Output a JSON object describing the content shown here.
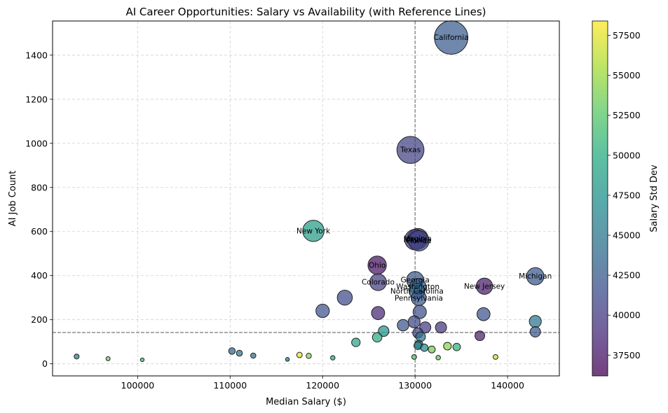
{
  "chart_data": {
    "type": "scatter",
    "title": "AI Career Opportunities: Salary vs Availability (with Reference Lines)",
    "xlabel": "Median Salary ($)",
    "ylabel": "AI Job Count",
    "xlim": [
      90800,
      145600
    ],
    "ylim": [
      -55,
      1555
    ],
    "xticks": [
      100000,
      110000,
      120000,
      130000,
      140000
    ],
    "xtick_labels": [
      "100000",
      "110000",
      "120000",
      "130000",
      "140000"
    ],
    "yticks": [
      0,
      200,
      400,
      600,
      800,
      1000,
      1200,
      1400
    ],
    "ytick_labels": [
      "0",
      "200",
      "400",
      "600",
      "800",
      "1000",
      "1200",
      "1400"
    ],
    "grid": true,
    "reference_lines": {
      "x": 130000,
      "y": 142
    },
    "colorbar": {
      "label": "Salary Std Dev",
      "min": 36200,
      "max": 58400,
      "ticks": [
        37500,
        40000,
        42500,
        45000,
        47500,
        50000,
        52500,
        55000,
        57500
      ],
      "tick_labels": [
        "37500",
        "40000",
        "42500",
        "45000",
        "47500",
        "50000",
        "52500",
        "55000",
        "57500"
      ],
      "colormap": "viridis"
    },
    "points": [
      {
        "x": 133900,
        "y": 1480,
        "size": 1480,
        "c": 42500,
        "label": "California"
      },
      {
        "x": 129500,
        "y": 970,
        "size": 970,
        "c": 40500,
        "label": "Texas"
      },
      {
        "x": 119000,
        "y": 603,
        "size": 603,
        "c": 48500,
        "label": "New York"
      },
      {
        "x": 130300,
        "y": 567,
        "size": 567,
        "c": 38300,
        "label": "Virginia"
      },
      {
        "x": 130400,
        "y": 558,
        "size": 558,
        "c": 41000,
        "label": "Florida"
      },
      {
        "x": 130000,
        "y": 563,
        "size": 563,
        "c": 40000,
        "label": "Illinois"
      },
      {
        "x": 125900,
        "y": 447,
        "size": 447,
        "c": 37300,
        "label": "Ohio"
      },
      {
        "x": 143000,
        "y": 397,
        "size": 397,
        "c": 42300,
        "label": "Michigan"
      },
      {
        "x": 137500,
        "y": 352,
        "size": 352,
        "c": 37800,
        "label": "New Jersey"
      },
      {
        "x": 130000,
        "y": 380,
        "size": 380,
        "c": 42500,
        "label": "Georgia"
      },
      {
        "x": 126000,
        "y": 370,
        "size": 370,
        "c": 40300,
        "label": "Colorado"
      },
      {
        "x": 130300,
        "y": 350,
        "size": 350,
        "c": 43000,
        "label": "Washington"
      },
      {
        "x": 130200,
        "y": 330,
        "size": 330,
        "c": 44000,
        "label": "North Carolina"
      },
      {
        "x": 130400,
        "y": 298,
        "size": 298,
        "c": 42000,
        "label": "Pennsylvania"
      },
      {
        "x": 122400,
        "y": 300,
        "size": 300,
        "c": 41200
      },
      {
        "x": 120000,
        "y": 240,
        "size": 240,
        "c": 41800
      },
      {
        "x": 126000,
        "y": 230,
        "size": 230,
        "c": 38500
      },
      {
        "x": 130500,
        "y": 235,
        "size": 235,
        "c": 41500
      },
      {
        "x": 137400,
        "y": 225,
        "size": 225,
        "c": 41800
      },
      {
        "x": 143000,
        "y": 192,
        "size": 192,
        "c": 45000
      },
      {
        "x": 129900,
        "y": 190,
        "size": 190,
        "c": 40800
      },
      {
        "x": 128700,
        "y": 175,
        "size": 175,
        "c": 42000
      },
      {
        "x": 131100,
        "y": 165,
        "size": 165,
        "c": 40200
      },
      {
        "x": 132800,
        "y": 165,
        "size": 165,
        "c": 39500
      },
      {
        "x": 126600,
        "y": 148,
        "size": 148,
        "c": 47500
      },
      {
        "x": 143000,
        "y": 145,
        "size": 145,
        "c": 42200
      },
      {
        "x": 130300,
        "y": 140,
        "size": 140,
        "c": 40500
      },
      {
        "x": 137000,
        "y": 127,
        "size": 127,
        "c": 38200
      },
      {
        "x": 130600,
        "y": 123,
        "size": 123,
        "c": 44500
      },
      {
        "x": 125900,
        "y": 120,
        "size": 120,
        "c": 50000
      },
      {
        "x": 123600,
        "y": 97,
        "size": 97,
        "c": 49000
      },
      {
        "x": 130400,
        "y": 88,
        "size": 88,
        "c": 43200
      },
      {
        "x": 130300,
        "y": 82,
        "size": 82,
        "c": 46500
      },
      {
        "x": 133500,
        "y": 80,
        "size": 80,
        "c": 54500
      },
      {
        "x": 134500,
        "y": 76,
        "size": 76,
        "c": 50500
      },
      {
        "x": 131000,
        "y": 73,
        "size": 73,
        "c": 46800
      },
      {
        "x": 131800,
        "y": 65,
        "size": 65,
        "c": 53500
      },
      {
        "x": 110200,
        "y": 58,
        "size": 58,
        "c": 43500
      },
      {
        "x": 111000,
        "y": 48,
        "size": 48,
        "c": 44500
      },
      {
        "x": 117500,
        "y": 40,
        "size": 40,
        "c": 57500
      },
      {
        "x": 112500,
        "y": 37,
        "size": 37,
        "c": 44200
      },
      {
        "x": 118500,
        "y": 36,
        "size": 36,
        "c": 54200
      },
      {
        "x": 93400,
        "y": 33,
        "size": 33,
        "c": 45300
      },
      {
        "x": 138700,
        "y": 31,
        "size": 31,
        "c": 57000
      },
      {
        "x": 129900,
        "y": 31,
        "size": 31,
        "c": 52000
      },
      {
        "x": 132500,
        "y": 28,
        "size": 28,
        "c": 53000
      },
      {
        "x": 121100,
        "y": 27,
        "size": 27,
        "c": 49500
      },
      {
        "x": 96800,
        "y": 23,
        "size": 23,
        "c": 53500
      },
      {
        "x": 116200,
        "y": 20,
        "size": 20,
        "c": 44800
      },
      {
        "x": 100500,
        "y": 18,
        "size": 18,
        "c": 51500
      }
    ]
  }
}
